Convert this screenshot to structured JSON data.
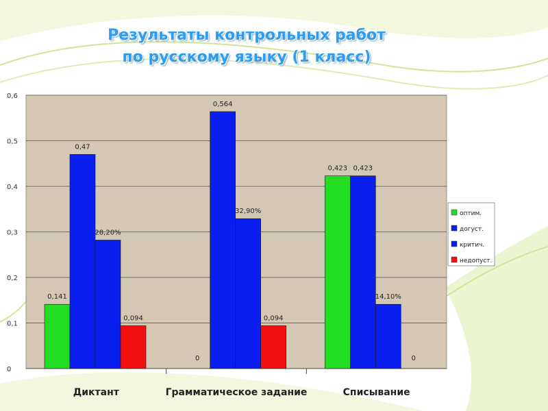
{
  "slide": {
    "title_line1": "Результаты контрольных работ",
    "title_line2": "по русскому языку (1 класс)"
  },
  "colors": {
    "plot_bg": "#d4c8b4",
    "green": "#22dd22",
    "blue": "#0a1ef0",
    "red": "#f01010",
    "title": "#2e9cf2"
  },
  "chart_data": {
    "type": "bar",
    "categories": [
      "Диктант",
      "Грамматическое задание",
      "Списывание"
    ],
    "series": [
      {
        "name": "оптим.",
        "color": "#22dd22",
        "values": [
          0.141,
          0,
          0.423
        ],
        "labels": [
          "0,141",
          "0",
          "0,423"
        ]
      },
      {
        "name": "догуст.",
        "color": "#0a1ef0",
        "values": [
          0.47,
          0.564,
          0.423
        ],
        "labels": [
          "0,47",
          "0,564",
          "0,423"
        ]
      },
      {
        "name": "критич.",
        "color": "#0a1ef0",
        "values": [
          0.282,
          0.329,
          0.141
        ],
        "labels": [
          "28,20%",
          "32,90%",
          "14,10%"
        ]
      },
      {
        "name": "недопуст.",
        "color": "#f01010",
        "values": [
          0.094,
          0.094,
          0
        ],
        "labels": [
          "0,094",
          "0,094",
          "0"
        ]
      }
    ],
    "yticks": [
      "0",
      "0,1",
      "0,2",
      "0,3",
      "0,4",
      "0,5",
      "0,6"
    ],
    "ylim": [
      0,
      0.6
    ],
    "grid": true,
    "legend": "right"
  }
}
